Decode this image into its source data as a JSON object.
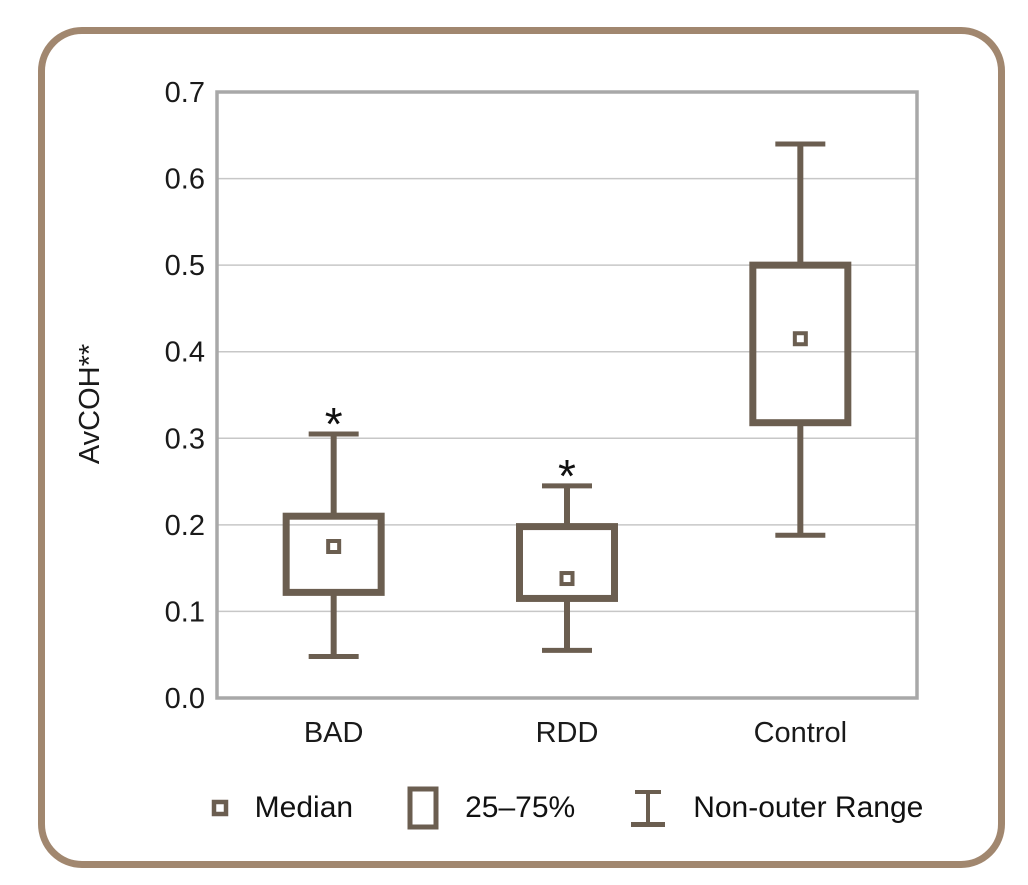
{
  "chart_data": {
    "type": "boxplot",
    "title": "",
    "ylabel": "AvCOH**",
    "xlabel": "",
    "categories": [
      "BAD",
      "RDD",
      "Control"
    ],
    "ylim": [
      0.0,
      0.7
    ],
    "yticks": [
      0.0,
      0.1,
      0.2,
      0.3,
      0.4,
      0.5,
      0.6,
      0.7
    ],
    "ytick_labels": [
      "0.0",
      "0.1",
      "0.2",
      "0.3",
      "0.4",
      "0.5",
      "0.6",
      "0.7"
    ],
    "grid": "horizontal",
    "series": [
      {
        "group": "BAD",
        "whisker_low": 0.048,
        "q1": 0.122,
        "median": 0.175,
        "q3": 0.21,
        "whisker_high": 0.305,
        "annotation": "*"
      },
      {
        "group": "RDD",
        "whisker_low": 0.055,
        "q1": 0.115,
        "median": 0.138,
        "q3": 0.198,
        "whisker_high": 0.245,
        "annotation": "*"
      },
      {
        "group": "Control",
        "whisker_low": 0.188,
        "q1": 0.318,
        "median": 0.415,
        "q3": 0.5,
        "whisker_high": 0.64,
        "annotation": ""
      }
    ],
    "legend": [
      {
        "icon": "median-marker-icon",
        "label": "Median"
      },
      {
        "icon": "iqr-box-icon",
        "label": "25–75%"
      },
      {
        "icon": "whisker-icon",
        "label": "Non-outer Range"
      }
    ],
    "legend_position": "bottom",
    "colors": {
      "box": "#6b5e50",
      "frame": "#a1876f",
      "grid": "#c7c7c7",
      "plot_border": "#a8a8a8",
      "text": "#1a1a1a"
    }
  }
}
